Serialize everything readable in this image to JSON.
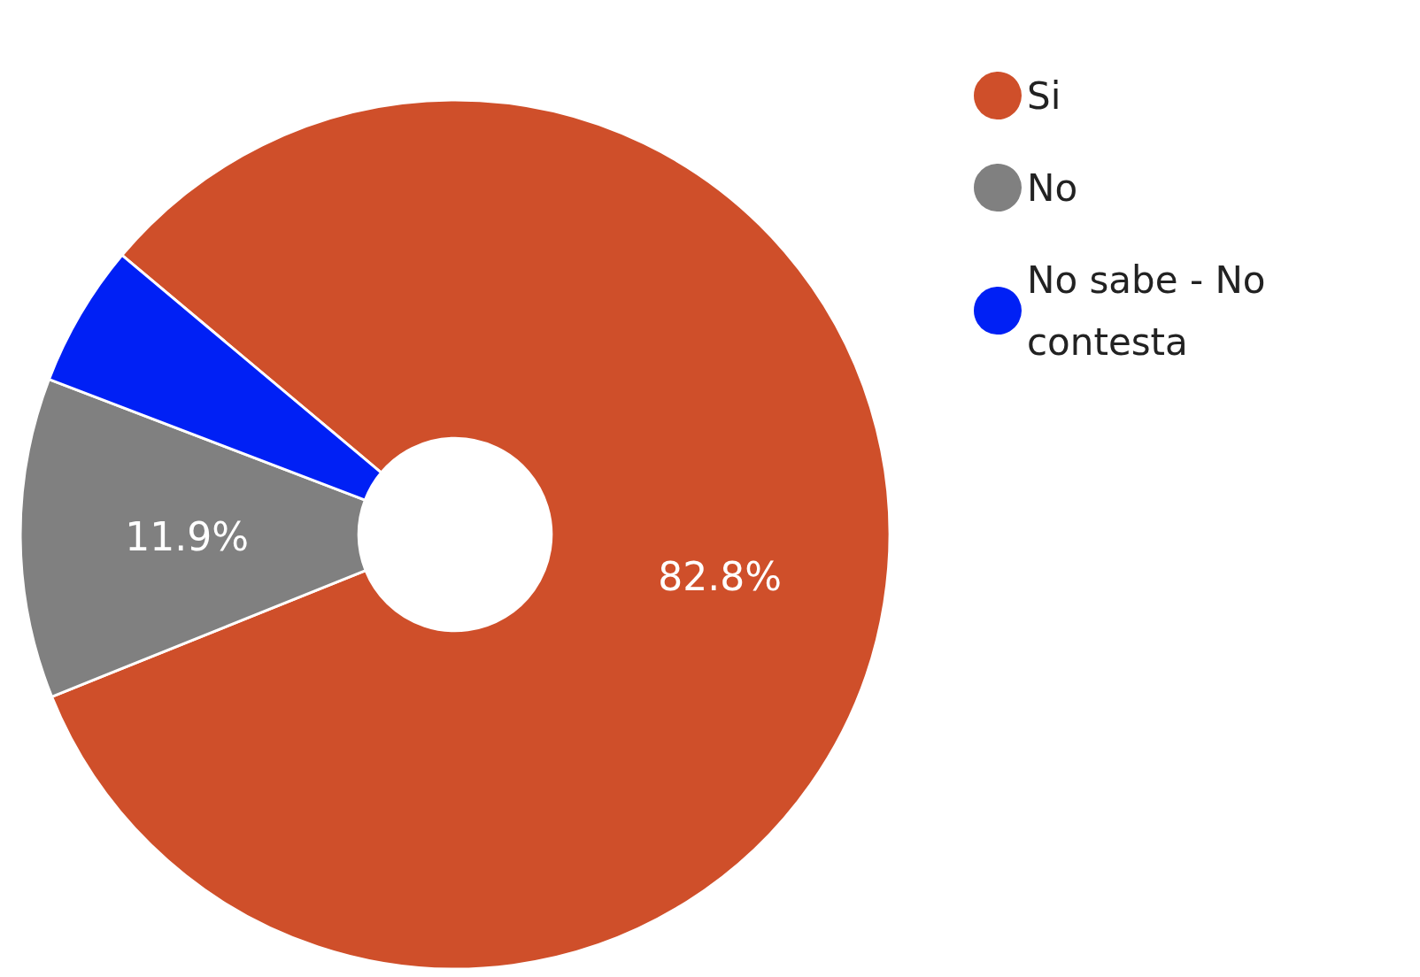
{
  "chart_data": {
    "type": "donut",
    "categories": [
      "Si",
      "No",
      "No sabe - No contesta"
    ],
    "values": [
      82.8,
      11.9,
      5.3
    ],
    "colors": [
      "#cf4f2a",
      "#808080",
      "#0020f5"
    ],
    "value_labels": [
      "82.8%",
      "11.9%",
      null
    ],
    "legend": "top right"
  }
}
